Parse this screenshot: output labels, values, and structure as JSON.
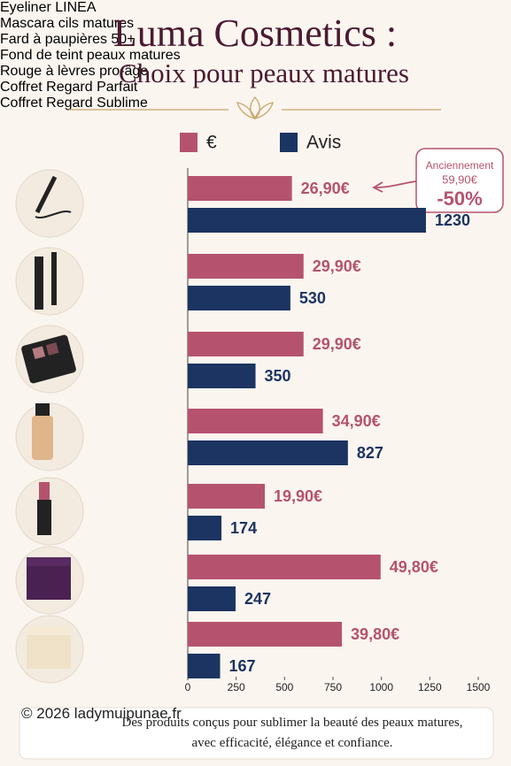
{
  "chart_data": {
    "type": "bar",
    "orientation": "horizontal",
    "title": "Luma Cosmetics :",
    "subtitle": "Choix pour peaux matures",
    "categories": [
      "Eyeliner\nLINEA",
      "Mascara\ncils matures",
      "Fard à\npaupières 50+",
      "Fond de teint\npeaux matures",
      "Rouge à lèvres\npro-âge",
      "Coffret\nRegard Parfait",
      "Coffret\nRegard Sublime"
    ],
    "series": [
      {
        "name": "€",
        "color": "#b5536f",
        "axis": "x2",
        "values": [
          26.9,
          29.9,
          29.9,
          34.9,
          19.9,
          49.8,
          39.8
        ],
        "value_labels": [
          "26,90€",
          "29,90€",
          "29,90€",
          "34,90€",
          "19,90€",
          "49,80€",
          "39,80€"
        ]
      },
      {
        "name": "Avis",
        "color": "#1c3461",
        "values": [
          1230,
          530,
          350,
          827,
          174,
          247,
          167
        ]
      }
    ],
    "xlim": [
      0,
      1500
    ],
    "xticks": [
      0,
      250,
      500,
      750,
      1000,
      1250,
      1500
    ],
    "x2lim": [
      0,
      75
    ],
    "annotation": [
      "Anciennement",
      "59,90€",
      "-50%"
    ],
    "footer": "Des produits conçus pour sublimer la beauté des peaux matures,\navec efficacité, élégance et confiance.",
    "watermark": "© 2026 ladymuipunae.fr"
  }
}
